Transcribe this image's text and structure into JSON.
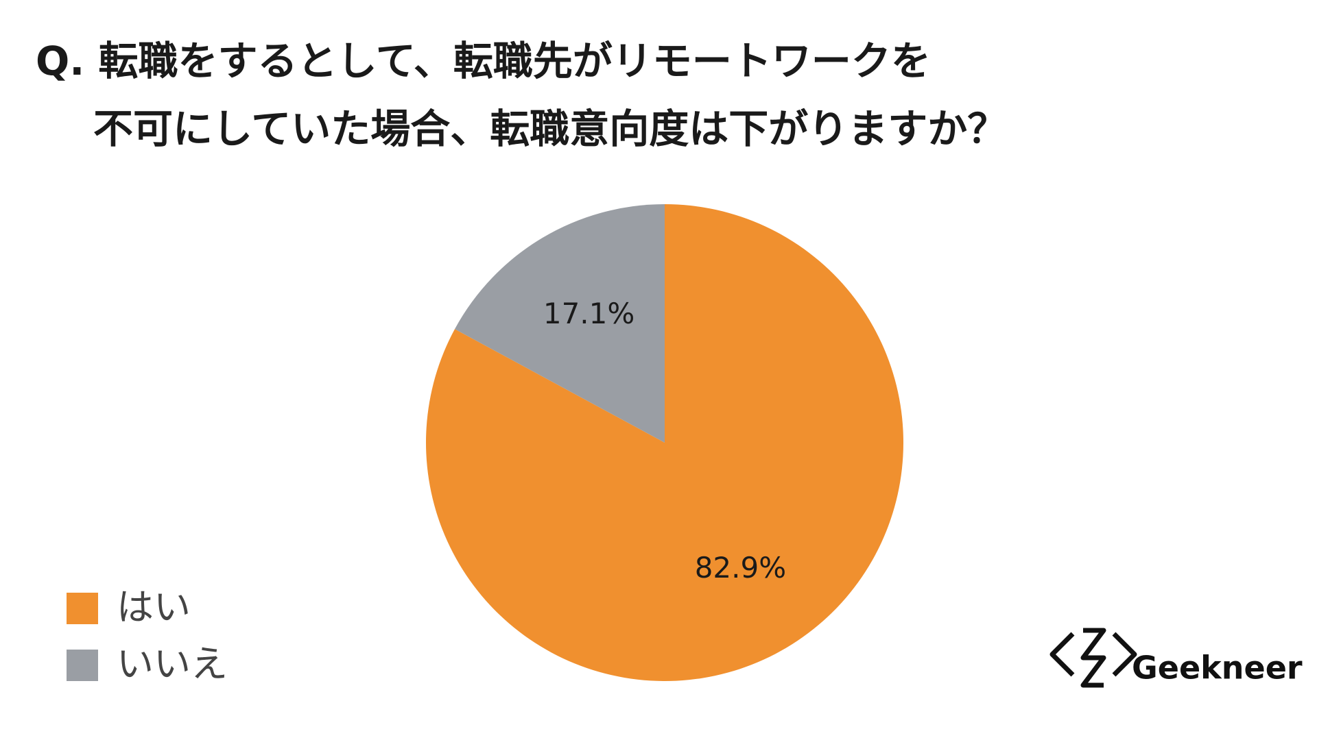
{
  "chart_data": {
    "type": "pie",
    "title": [
      "Q. 転職をするとして、転職先がリモートワークを",
      "不可にしていた場合、転職意向度は下がりますか？"
    ],
    "categories": [
      "はい",
      "いいえ"
    ],
    "values": [
      82.9,
      17.1
    ],
    "value_labels": [
      "82.9%",
      "17.1%"
    ],
    "colors": [
      "#f0902f",
      "#9a9ea4"
    ],
    "legend": "bottom-left"
  },
  "logo": "Geekneer"
}
